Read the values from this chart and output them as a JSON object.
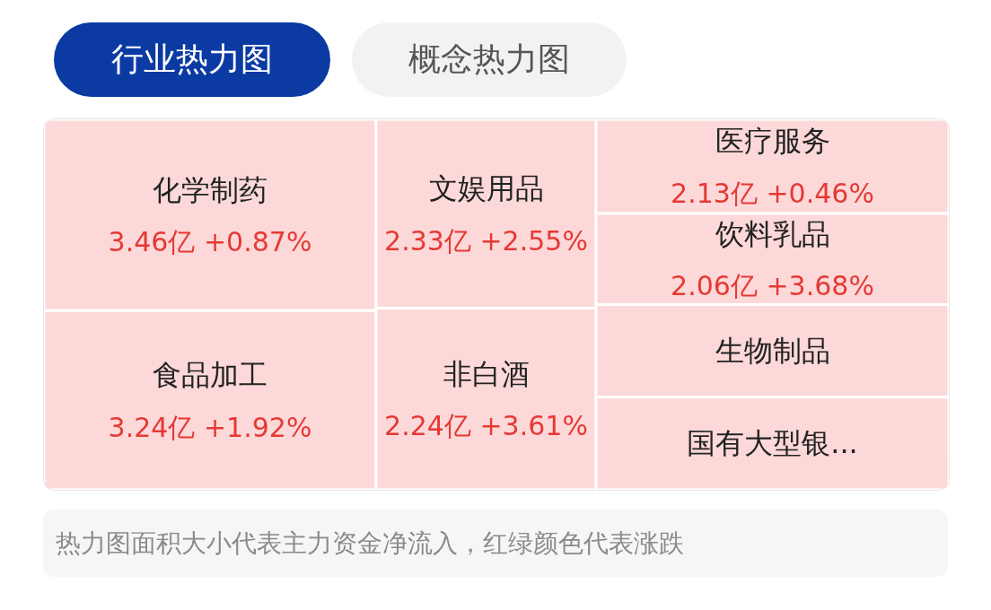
{
  "chart_data": {
    "type": "other",
    "title": "行业热力图",
    "annotations": [
      "概念热力图",
      "热力图面积大小代表主力资金净流入，红绿颜色代表涨跌"
    ],
    "categories": [
      "化学制药",
      "食品加工",
      "文娱用品",
      "非白酒",
      "医疗服务",
      "饮料乳品",
      "生物制品",
      "国有大型银..."
    ],
    "values": [
      3.46,
      3.24,
      2.33,
      2.24,
      2.13,
      2.06,
      null,
      null
    ],
    "value_labels": [
      "3.46亿 +0.87%",
      "3.24亿 +1.92%",
      "2.33亿 +2.55%",
      "2.24亿 +3.61%",
      "2.13亿 +0.46%",
      "2.06亿 +3.68%",
      null,
      null
    ],
    "colors": [
      "#fdd8d8",
      "#fdd8d8",
      "#fdd8d8",
      "#fdd8d8",
      "#fdd8d8",
      "#fdd8d8",
      "#fdd8d8",
      "#fdd8d8"
    ]
  }
}
